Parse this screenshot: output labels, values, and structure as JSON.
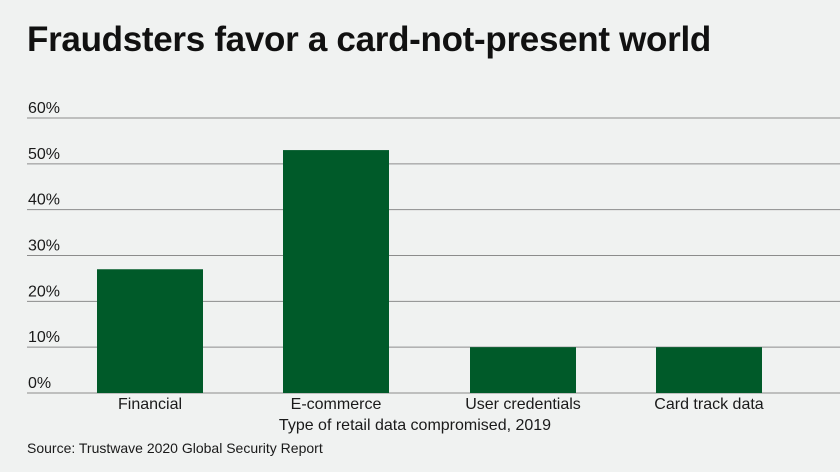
{
  "chart_data": {
    "type": "bar",
    "title": "Fraudsters favor a card-not-present world",
    "categories": [
      "Financial",
      "E-commerce",
      "User credentials",
      "Card track data"
    ],
    "values": [
      27,
      53,
      10,
      10
    ],
    "xlabel": "Type of retail data compromised, 2019",
    "ylabel": "",
    "ylim": [
      0,
      60
    ],
    "yticks": [
      0,
      10,
      20,
      30,
      40,
      50,
      60
    ],
    "ytick_format": "{v}%",
    "grid": true,
    "bar_color": "#005a29",
    "gridline_color": "#8c8c8c",
    "source": "Source: Trustwave 2020 Global Security Report"
  }
}
